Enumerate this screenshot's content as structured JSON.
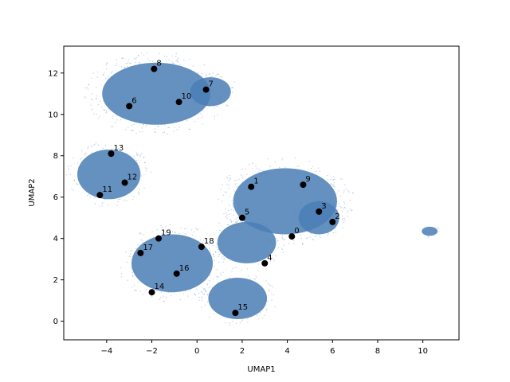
{
  "chart_data": {
    "type": "scatter",
    "xlabel": "UMAP1",
    "ylabel": "UMAP2",
    "xlim": [
      -5.9,
      11.6
    ],
    "ylim": [
      -0.9,
      13.3
    ],
    "xticks": [
      -4,
      -2,
      0,
      2,
      4,
      6,
      8,
      10
    ],
    "yticks": [
      0,
      2,
      4,
      6,
      8,
      10,
      12
    ],
    "grid": false,
    "background_color": "#4a7eb5",
    "marker_color": "#000000",
    "background_clusters": [
      {
        "cx": -1.8,
        "cy": 11.0,
        "rx": 2.4,
        "ry": 1.5
      },
      {
        "cx": 0.6,
        "cy": 11.1,
        "rx": 0.9,
        "ry": 0.7
      },
      {
        "cx": -3.9,
        "cy": 7.1,
        "rx": 1.4,
        "ry": 1.2
      },
      {
        "cx": 3.9,
        "cy": 5.8,
        "rx": 2.3,
        "ry": 1.6
      },
      {
        "cx": 5.4,
        "cy": 5.0,
        "rx": 0.9,
        "ry": 0.8
      },
      {
        "cx": 2.2,
        "cy": 3.8,
        "rx": 1.3,
        "ry": 1.0
      },
      {
        "cx": -1.1,
        "cy": 2.8,
        "rx": 1.8,
        "ry": 1.4
      },
      {
        "cx": 1.8,
        "cy": 1.1,
        "rx": 1.3,
        "ry": 1.0
      },
      {
        "cx": 10.3,
        "cy": 4.35,
        "rx": 0.35,
        "ry": 0.22
      }
    ],
    "points": [
      {
        "label": "0",
        "x": 4.2,
        "y": 4.1
      },
      {
        "label": "1",
        "x": 2.4,
        "y": 6.5
      },
      {
        "label": "2",
        "x": 6.0,
        "y": 4.8
      },
      {
        "label": "3",
        "x": 5.4,
        "y": 5.3
      },
      {
        "label": "4",
        "x": 3.0,
        "y": 2.8
      },
      {
        "label": "5",
        "x": 2.0,
        "y": 5.0
      },
      {
        "label": "6",
        "x": -3.0,
        "y": 10.4
      },
      {
        "label": "7",
        "x": 0.4,
        "y": 11.2
      },
      {
        "label": "8",
        "x": -1.9,
        "y": 12.2
      },
      {
        "label": "9",
        "x": 4.7,
        "y": 6.6
      },
      {
        "label": "10",
        "x": -0.8,
        "y": 10.6
      },
      {
        "label": "11",
        "x": -4.3,
        "y": 6.1
      },
      {
        "label": "12",
        "x": -3.2,
        "y": 6.7
      },
      {
        "label": "13",
        "x": -3.8,
        "y": 8.1
      },
      {
        "label": "14",
        "x": -2.0,
        "y": 1.4
      },
      {
        "label": "15",
        "x": 1.7,
        "y": 0.4
      },
      {
        "label": "16",
        "x": -0.9,
        "y": 2.3
      },
      {
        "label": "17",
        "x": -2.5,
        "y": 3.3
      },
      {
        "label": "18",
        "x": 0.2,
        "y": 3.6
      },
      {
        "label": "19",
        "x": -1.7,
        "y": 4.0
      }
    ]
  }
}
